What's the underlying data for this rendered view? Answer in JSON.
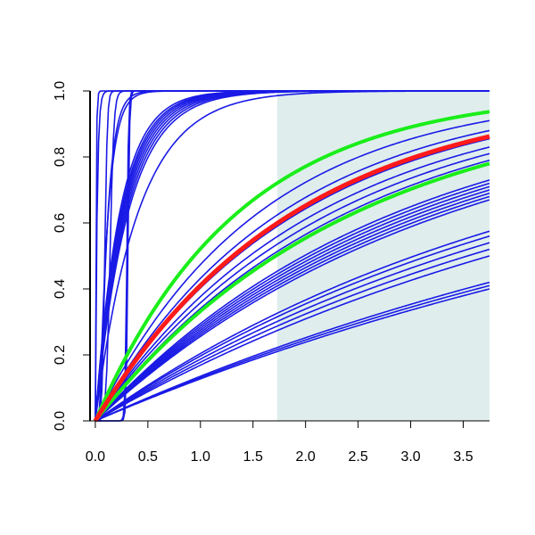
{
  "chart_data": {
    "type": "line",
    "title": "",
    "xlabel": "",
    "ylabel": "",
    "xlim": [
      -0.05,
      3.75
    ],
    "ylim": [
      0,
      1
    ],
    "x_ticks": [
      "0.0",
      "0.5",
      "1.0",
      "1.5",
      "2.0",
      "2.5",
      "3.0",
      "3.5"
    ],
    "y_ticks": [
      "0.0",
      "0.2",
      "0.4",
      "0.6",
      "0.8",
      "1.0"
    ],
    "grid": false,
    "legend": "none",
    "shaded_region": {
      "x_start": 1.73,
      "x_end": 3.75,
      "color": "#dfeeed"
    },
    "colors": {
      "fast_curves": "#1a1ae6",
      "slow_curves": "#1a1ae6",
      "mean": "#ff1a1a",
      "bounds": "#1aee1a"
    },
    "fast_curves": [
      {
        "type": "sat",
        "rate": 160,
        "x0": 0
      },
      {
        "type": "sat",
        "rate": 60,
        "x0": 0
      },
      {
        "type": "sat",
        "rate": 12,
        "x0": 0.04
      },
      {
        "type": "logis",
        "mid": 0.09,
        "scale": 0.012
      },
      {
        "type": "logis",
        "mid": 0.14,
        "scale": 0.018
      },
      {
        "type": "logis",
        "mid": 0.3,
        "scale": 0.008
      },
      {
        "type": "logis",
        "mid": 0.31,
        "scale": 0.008
      },
      {
        "type": "sat",
        "rate": 14,
        "x0": 0.05
      },
      {
        "type": "sat",
        "rate": 4.3,
        "x0": 0
      },
      {
        "type": "sat",
        "rate": 4.1,
        "x0": 0
      },
      {
        "type": "sat",
        "rate": 3.95,
        "x0": 0
      },
      {
        "type": "sat",
        "rate": 3.8,
        "x0": 0
      },
      {
        "type": "sat",
        "rate": 3.65,
        "x0": 0
      },
      {
        "type": "sat",
        "rate": 3.5,
        "x0": 0
      },
      {
        "type": "sat",
        "rate": 3.35,
        "x0": 0
      },
      {
        "type": "sat",
        "rate": 3.2,
        "x0": 0
      }
    ],
    "slow_curves_end": [
      1.0,
      0.91,
      0.88,
      0.855,
      0.83,
      0.81,
      0.79,
      0.73,
      0.72,
      0.71,
      0.7,
      0.69,
      0.68,
      0.67,
      0.575,
      0.56,
      0.54,
      0.52,
      0.5,
      0.42,
      0.41,
      0.4
    ],
    "mean_curve_end": 0.862,
    "bound_curves_end": [
      0.937,
      0.78
    ]
  }
}
